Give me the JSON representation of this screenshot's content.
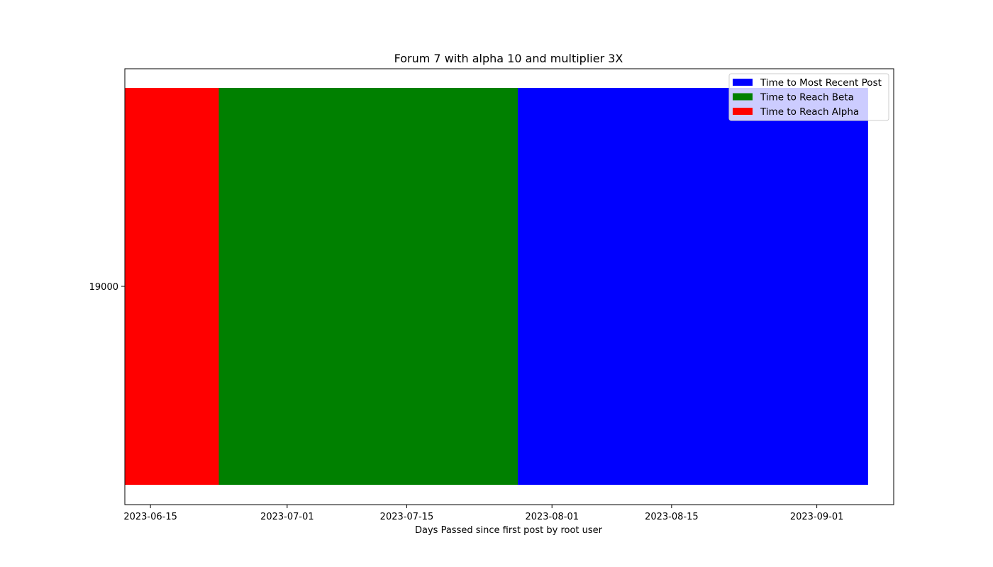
{
  "chart_data": {
    "type": "bar",
    "orientation": "horizontal",
    "stacked": true,
    "title": "Forum 7 with alpha 10 and multiplier 3X",
    "xlabel": "Days Passed since first post by root user",
    "ylabel": "",
    "categories": [
      "19000"
    ],
    "xlim": [
      "2023-06-12",
      "2023-09-10"
    ],
    "x_ticks": [
      "2023-06-15",
      "2023-07-01",
      "2023-07-15",
      "2023-08-01",
      "2023-08-15",
      "2023-09-01"
    ],
    "series": [
      {
        "name": "Time to Most Recent Post",
        "color": "#0000ff",
        "start": "2023-07-28",
        "end": "2023-09-07"
      },
      {
        "name": "Time to Reach Beta",
        "color": "#008000",
        "start": "2023-06-23",
        "end": "2023-07-28"
      },
      {
        "name": "Time to Reach Alpha",
        "color": "#ff0000",
        "start": "2023-06-12",
        "end": "2023-06-23"
      }
    ],
    "grid": false,
    "legend": "top-right"
  }
}
